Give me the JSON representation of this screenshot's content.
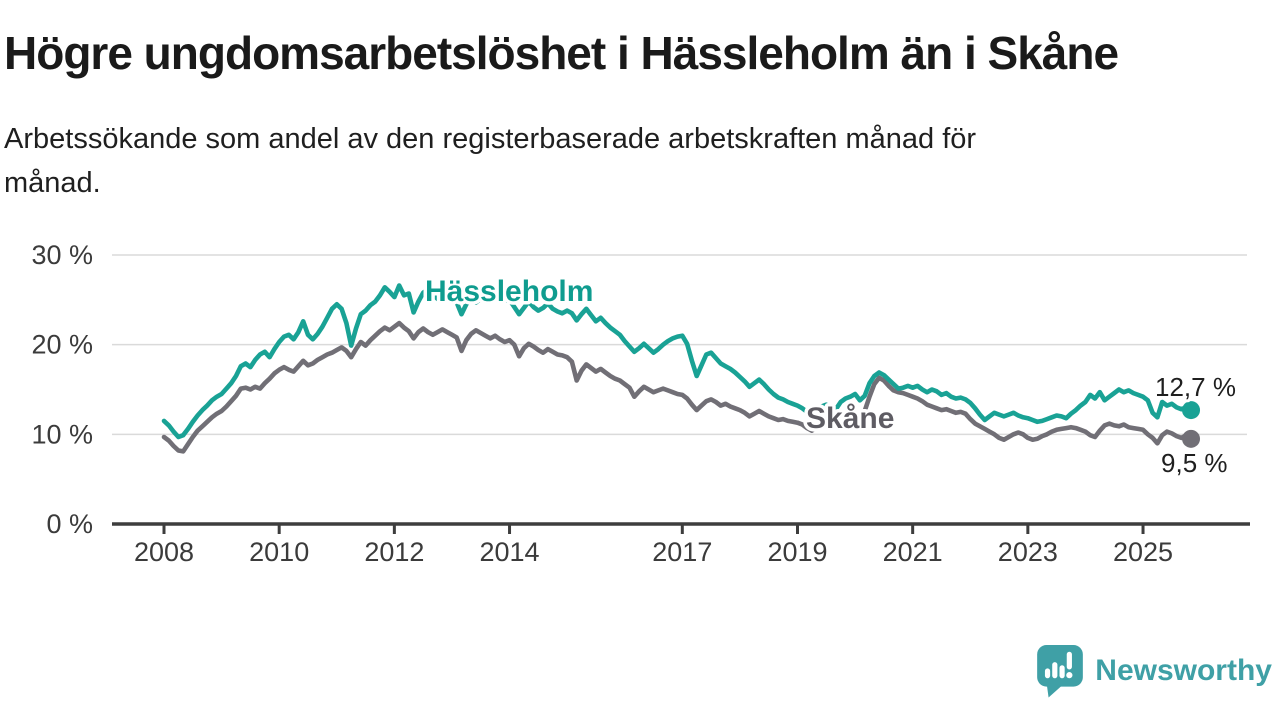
{
  "header": {
    "title": "Högre ungdomsarbetslöshet i Hässleholm än i Skåne",
    "subtitle_line1": "Arbetssökande som andel av den registerbaserade arbetskraften månad för",
    "subtitle_line2": "månad."
  },
  "chart_data": {
    "type": "line",
    "title": "Högre ungdomsarbetslöshet i Hässleholm än i Skåne",
    "subtitle": "Arbetssökande som andel av den registerbaserade arbetskraften månad för månad.",
    "x_unit": "month",
    "x_range": [
      "2008-01",
      "2025-11"
    ],
    "ylim": [
      0,
      30
    ],
    "grid": true,
    "legend": "inline-labels",
    "grid_color": "#dadada",
    "axis_color": "#3d3d3d",
    "y_ticks": [
      {
        "value": 0,
        "label": "0 %"
      },
      {
        "value": 10,
        "label": "10 %"
      },
      {
        "value": 20,
        "label": "20 %"
      },
      {
        "value": 30,
        "label": "30 %"
      }
    ],
    "x_ticks": [
      {
        "year": 2008,
        "label": "2008"
      },
      {
        "year": 2010,
        "label": "2010"
      },
      {
        "year": 2012,
        "label": "2012"
      },
      {
        "year": 2014,
        "label": "2014"
      },
      {
        "year": 2017,
        "label": "2017"
      },
      {
        "year": 2019,
        "label": "2019"
      },
      {
        "year": 2021,
        "label": "2021"
      },
      {
        "year": 2023,
        "label": "2023"
      },
      {
        "year": 2025,
        "label": "2025"
      }
    ],
    "series": [
      {
        "name": "Hässleholm",
        "color": "#19a295",
        "label_color": "#0f9c8f",
        "end_label": "12,7 %",
        "last_value": 12.7,
        "start": "2008-01",
        "frequency": "monthly",
        "values": [
          11.5,
          11.0,
          10.3,
          9.7,
          9.9,
          10.6,
          11.4,
          12.1,
          12.7,
          13.2,
          13.8,
          14.2,
          14.5,
          15.1,
          15.7,
          16.5,
          17.6,
          17.9,
          17.5,
          18.3,
          18.9,
          19.2,
          18.6,
          19.5,
          20.3,
          20.9,
          21.1,
          20.6,
          21.4,
          22.6,
          21.1,
          20.6,
          21.2,
          22.0,
          23.0,
          24.0,
          24.5,
          24.0,
          22.4,
          19.9,
          21.8,
          23.4,
          23.8,
          24.4,
          24.8,
          25.5,
          26.4,
          25.9,
          25.3,
          26.6,
          25.5,
          25.7,
          23.6,
          24.8,
          25.8,
          26.2,
          25.6,
          25.1,
          25.5,
          25.9,
          25.4,
          24.7,
          23.4,
          24.5,
          25.3,
          24.7,
          25.1,
          25.6,
          26.0,
          25.4,
          24.8,
          24.9,
          25.0,
          24.2,
          23.4,
          24.1,
          24.8,
          24.2,
          23.8,
          24.1,
          24.6,
          24.0,
          23.7,
          23.5,
          23.8,
          23.5,
          22.7,
          23.4,
          24.0,
          23.3,
          22.6,
          23.0,
          22.4,
          21.9,
          21.5,
          21.1,
          20.4,
          19.8,
          19.2,
          19.6,
          20.1,
          19.6,
          19.1,
          19.5,
          20.0,
          20.4,
          20.7,
          20.9,
          21.0,
          20.1,
          18.2,
          16.5,
          17.7,
          18.9,
          19.1,
          18.5,
          17.9,
          17.6,
          17.3,
          16.9,
          16.4,
          15.9,
          15.3,
          15.7,
          16.1,
          15.6,
          15.0,
          14.5,
          14.1,
          13.9,
          13.6,
          13.4,
          13.2,
          12.9,
          12.5,
          12.3,
          12.7,
          13.1,
          13.3,
          13.0,
          12.8,
          13.6,
          14.0,
          14.2,
          14.5,
          13.8,
          14.3,
          15.7,
          16.5,
          16.9,
          16.6,
          16.1,
          15.6,
          15.1,
          15.2,
          15.4,
          15.2,
          15.4,
          15.0,
          14.7,
          15.0,
          14.8,
          14.4,
          14.6,
          14.2,
          14.0,
          14.1,
          13.9,
          13.5,
          12.9,
          12.2,
          11.6,
          12.0,
          12.4,
          12.2,
          12.0,
          12.2,
          12.4,
          12.1,
          11.9,
          11.8,
          11.6,
          11.4,
          11.5,
          11.7,
          11.9,
          12.1,
          12.0,
          11.8,
          12.3,
          12.7,
          13.2,
          13.6,
          14.4,
          14.0,
          14.7,
          13.8,
          14.2,
          14.6,
          15.0,
          14.7,
          14.9,
          14.6,
          14.4,
          14.2,
          13.8,
          12.4,
          11.9,
          13.6,
          13.2,
          13.4,
          13.0,
          12.8,
          13.0,
          12.7
        ]
      },
      {
        "name": "Skåne",
        "color": "#716f76",
        "label_color": "#5e5c63",
        "end_label": "9,5 %",
        "last_value": 9.5,
        "start": "2008-01",
        "frequency": "monthly",
        "values": [
          9.7,
          9.3,
          8.7,
          8.2,
          8.1,
          8.9,
          9.7,
          10.4,
          10.9,
          11.4,
          11.9,
          12.3,
          12.6,
          13.1,
          13.7,
          14.3,
          15.1,
          15.2,
          15.0,
          15.3,
          15.1,
          15.7,
          16.2,
          16.8,
          17.2,
          17.5,
          17.2,
          17.0,
          17.6,
          18.2,
          17.7,
          17.9,
          18.3,
          18.6,
          18.9,
          19.1,
          19.4,
          19.7,
          19.3,
          18.6,
          19.5,
          20.3,
          19.9,
          20.5,
          21.0,
          21.5,
          21.9,
          21.6,
          22.0,
          22.4,
          21.9,
          21.5,
          20.7,
          21.4,
          21.8,
          21.4,
          21.1,
          21.4,
          21.7,
          21.4,
          21.1,
          20.8,
          19.3,
          20.5,
          21.2,
          21.6,
          21.3,
          21.0,
          20.7,
          21.0,
          20.6,
          20.3,
          20.5,
          20.0,
          18.7,
          19.6,
          20.1,
          19.8,
          19.4,
          19.1,
          19.5,
          19.2,
          18.9,
          18.8,
          18.6,
          18.1,
          16.0,
          17.1,
          17.8,
          17.4,
          17.0,
          17.3,
          16.9,
          16.5,
          16.2,
          16.0,
          15.6,
          15.2,
          14.2,
          14.8,
          15.3,
          15.0,
          14.7,
          14.9,
          15.1,
          14.9,
          14.7,
          14.5,
          14.4,
          14.0,
          13.3,
          12.7,
          13.2,
          13.7,
          13.9,
          13.6,
          13.2,
          13.4,
          13.1,
          12.9,
          12.7,
          12.4,
          12.0,
          12.3,
          12.6,
          12.3,
          12.0,
          11.8,
          11.6,
          11.7,
          11.5,
          11.4,
          11.3,
          11.1,
          10.7,
          10.4,
          10.8,
          11.2,
          11.4,
          11.2,
          11.0,
          11.2,
          11.5,
          11.7,
          11.8,
          12.0,
          12.6,
          14.2,
          15.6,
          16.3,
          16.0,
          15.4,
          14.9,
          14.7,
          14.6,
          14.4,
          14.2,
          14.0,
          13.7,
          13.3,
          13.1,
          12.9,
          12.7,
          12.8,
          12.6,
          12.4,
          12.5,
          12.3,
          11.7,
          11.2,
          10.9,
          10.6,
          10.3,
          10.0,
          9.6,
          9.4,
          9.7,
          10.0,
          10.2,
          10.0,
          9.6,
          9.4,
          9.5,
          9.8,
          10.0,
          10.3,
          10.5,
          10.6,
          10.7,
          10.8,
          10.7,
          10.5,
          10.3,
          9.9,
          9.7,
          10.4,
          11.0,
          11.2,
          11.0,
          10.9,
          11.1,
          10.8,
          10.7,
          10.6,
          10.5,
          10.0,
          9.6,
          9.0,
          9.9,
          10.3,
          10.1,
          9.8,
          9.6,
          9.9,
          9.5
        ]
      }
    ]
  },
  "branding": {
    "logo_text": "Newsworthy",
    "logo_color": "#3fa0a6",
    "logo_icon": "newsworthy-speech-bubble-chart-icon"
  }
}
